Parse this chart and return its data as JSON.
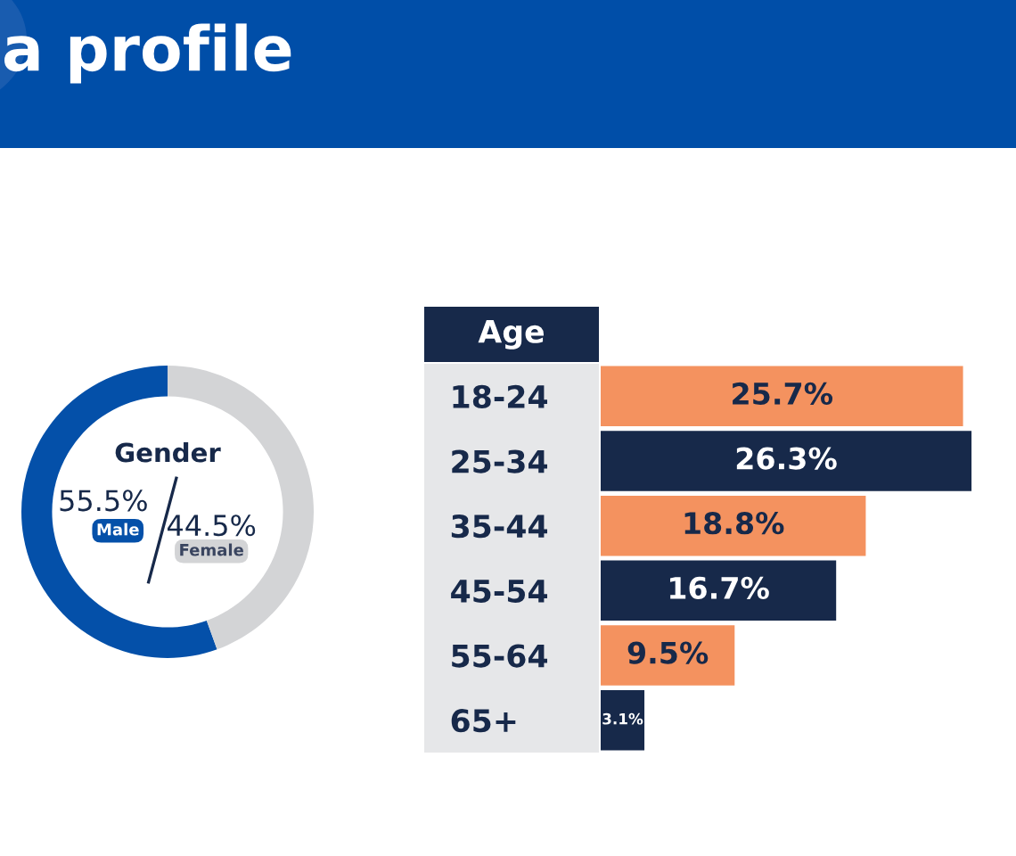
{
  "chart_data": [
    {
      "type": "donut",
      "title": "Gender",
      "annotations": [
        "a profile"
      ],
      "categories": [
        "Male",
        "Female"
      ],
      "values": [
        55.5,
        44.5
      ],
      "value_labels": [
        "55.5%",
        "44.5%"
      ],
      "colors": [
        "#0450a9",
        "#d3d4d6"
      ]
    },
    {
      "type": "bar",
      "orientation": "horizontal",
      "ylabel": "Age",
      "categories": [
        "18-24",
        "25-34",
        "35-44",
        "45-54",
        "55-64",
        "65+"
      ],
      "values": [
        25.7,
        26.3,
        18.8,
        16.7,
        9.5,
        3.1
      ],
      "value_labels": [
        "25.7%",
        "26.3%",
        "18.8%",
        "16.7%",
        "9.5%",
        "3.1%"
      ],
      "colors": [
        "#f4925f",
        "#17294a",
        "#f4925f",
        "#17294a",
        "#f4925f",
        "#17294a"
      ],
      "tick_labels": "y"
    }
  ]
}
